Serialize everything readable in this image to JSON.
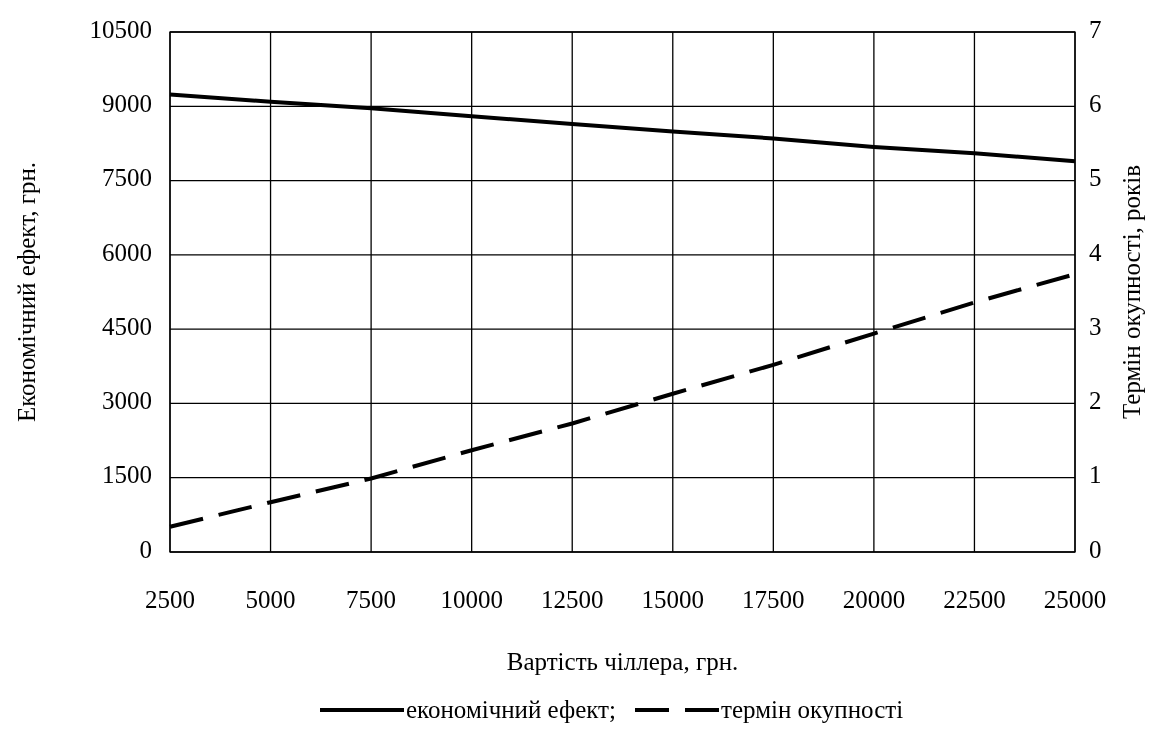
{
  "chart_data": {
    "type": "line",
    "xlabel": "Вартість чіллера, грн.",
    "ylabel": "Економічний ефект, грн.",
    "y2label": "Термін окупності, років",
    "x": [
      2500,
      5000,
      7500,
      10000,
      12500,
      15000,
      17500,
      20000,
      22500,
      25000
    ],
    "series": [
      {
        "name": "економічний ефект;",
        "color": "#000000",
        "line_style": "solid",
        "values": [
          9240,
          9090,
          8960,
          8800,
          8640,
          8490,
          8350,
          8180,
          8050,
          7890
        ]
      },
      {
        "name": "термін окупності",
        "color": "#000000",
        "line_style": "dashed",
        "axis": "y2",
        "values": [
          0.34,
          0.67,
          0.99,
          1.37,
          1.73,
          2.13,
          2.52,
          2.94,
          3.36,
          3.74
        ]
      }
    ],
    "xlim": [
      2500,
      25000
    ],
    "xticks": [
      2500,
      5000,
      7500,
      10000,
      12500,
      15000,
      17500,
      20000,
      22500,
      25000
    ],
    "ylim": [
      0,
      10500
    ],
    "yticks": [
      0,
      1500,
      3000,
      4500,
      6000,
      7500,
      9000,
      10500
    ],
    "y2lim": [
      0,
      7
    ],
    "y2ticks": [
      0,
      1,
      2,
      3,
      4,
      5,
      6,
      7
    ],
    "grid": true,
    "legend": "bottom",
    "marker": "none"
  }
}
